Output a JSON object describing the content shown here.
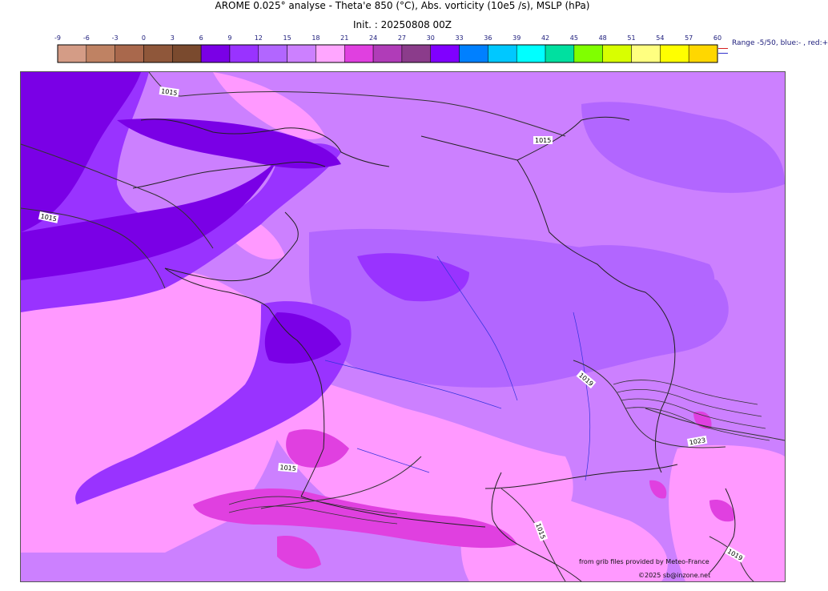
{
  "header": {
    "title": "AROME 0.025° analyse - Theta'e 850 (°C), Abs. vorticity (10e5 /s), MSLP (hPa)",
    "init": "Init. : 20250808 00Z"
  },
  "colorbar": {
    "ticks": [
      "-9",
      "-6",
      "-3",
      "0",
      "3",
      "6",
      "9",
      "12",
      "15",
      "18",
      "21",
      "24",
      "27",
      "30",
      "33",
      "36",
      "39",
      "42",
      "45",
      "48",
      "51",
      "54",
      "57",
      "60"
    ],
    "colors": [
      "#d49c86",
      "#bf8263",
      "#a9684c",
      "#8f573a",
      "#7a4a2e",
      "#7a00e6",
      "#9933ff",
      "#b266ff",
      "#cc80ff",
      "#ffa6ff",
      "#e040e0",
      "#b03cb8",
      "#8b3c8b",
      "#8000ff",
      "#0080ff",
      "#00c8ff",
      "#00ffff",
      "#00e0a0",
      "#80ff00",
      "#d8ff00",
      "#ffff80",
      "#ffff00",
      "#ffd700"
    ]
  },
  "legend_note": "Range -5/50, blue:- , red:+",
  "map": {
    "isobar_labels": [
      "1015",
      "1015",
      "1015",
      "1019",
      "1023",
      "1015",
      "1015",
      "1019"
    ],
    "colors": {
      "deep_violet": "#7a00e6",
      "violet": "#9933ff",
      "lavender": "#b266ff",
      "light_purple": "#cc80ff",
      "pink": "#ff99ff",
      "magenta": "#e040e0"
    }
  },
  "credits": {
    "source": "from grib files provided by Meteo-France",
    "copyright": "©2025 sb@inzone.net"
  }
}
